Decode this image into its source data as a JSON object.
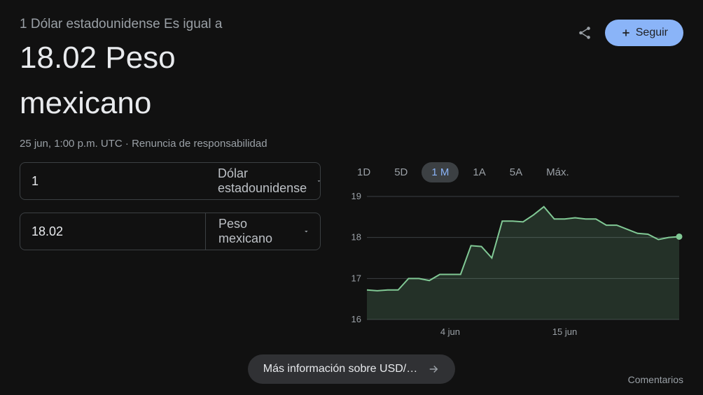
{
  "header": {
    "subtitle": "1 Dólar estadounidense Es igual a",
    "rate_value": "18.02",
    "rate_unit_line1": "Peso",
    "rate_unit_line2": "mexicano",
    "follow_label": "Seguir"
  },
  "meta": {
    "timestamp": "25 jun, 1:00 p.m. UTC",
    "separator": " · ",
    "disclaimer": "Renuncia de responsabilidad"
  },
  "inputs": {
    "from_value": "1",
    "from_currency": "Dólar estadounidense",
    "to_value": "18.02",
    "to_currency": "Peso mexicano"
  },
  "ranges": {
    "items": [
      "1D",
      "5D",
      "1 M",
      "1A",
      "5A",
      "Máx."
    ],
    "active_index": 2
  },
  "chart": {
    "type": "area",
    "line_color": "#81c995",
    "fill_color": "rgba(129,201,149,0.18)",
    "endpoint_fill": "#81c995",
    "background_color": "#111111",
    "grid_color": "#3c4043",
    "axis_label_color": "#9aa0a6",
    "axis_fontsize": 13,
    "ylim": [
      16,
      19
    ],
    "yticks": [
      16,
      17,
      18,
      19
    ],
    "xlim": [
      0,
      30
    ],
    "xticks": [
      {
        "value": 8,
        "label": "4 jun"
      },
      {
        "value": 19,
        "label": "15 jun"
      }
    ],
    "points": [
      [
        0,
        16.72
      ],
      [
        1,
        16.7
      ],
      [
        2,
        16.72
      ],
      [
        3,
        16.72
      ],
      [
        4,
        17.0
      ],
      [
        5,
        17.0
      ],
      [
        6,
        16.95
      ],
      [
        7,
        17.1
      ],
      [
        8,
        17.1
      ],
      [
        9,
        17.1
      ],
      [
        10,
        17.8
      ],
      [
        11,
        17.78
      ],
      [
        12,
        17.5
      ],
      [
        13,
        18.4
      ],
      [
        14,
        18.4
      ],
      [
        15,
        18.38
      ],
      [
        16,
        18.55
      ],
      [
        17,
        18.75
      ],
      [
        18,
        18.45
      ],
      [
        19,
        18.45
      ],
      [
        20,
        18.48
      ],
      [
        21,
        18.45
      ],
      [
        22,
        18.45
      ],
      [
        23,
        18.3
      ],
      [
        24,
        18.3
      ],
      [
        25,
        18.2
      ],
      [
        26,
        18.1
      ],
      [
        27,
        18.08
      ],
      [
        28,
        17.95
      ],
      [
        29,
        18.0
      ],
      [
        30,
        18.02
      ]
    ]
  },
  "footer": {
    "more_label": "Más información sobre USD/…",
    "comments_label": "Comentarios"
  }
}
